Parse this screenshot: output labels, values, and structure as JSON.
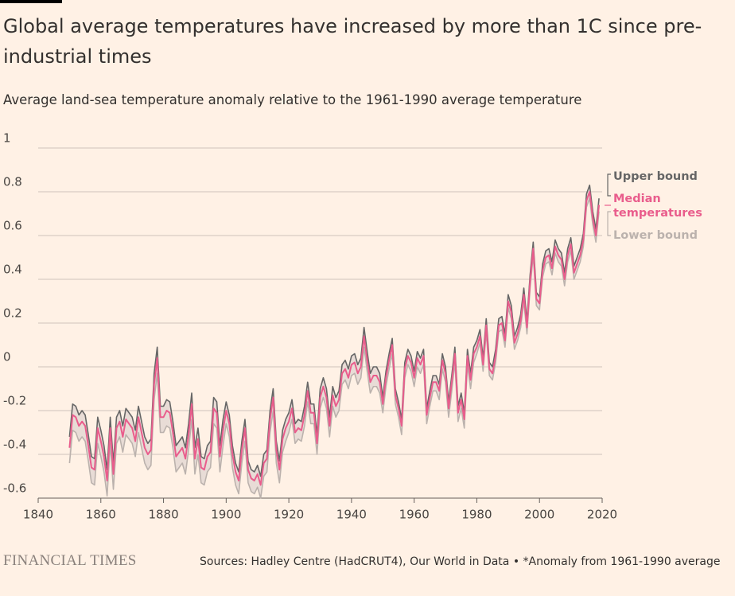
{
  "chart_data": {
    "type": "line",
    "title": "Global average temperatures have increased by more than 1C since pre-industrial times",
    "subtitle": "Average land-sea temperature anomaly relative to the 1961-1990 average temperature",
    "source": "Sources: Hadley Centre (HadCRUT4), Our World in Data • *Anomaly from 1961-1990 average",
    "brand": "FINANCIAL TIMES",
    "band_color": "#e8dcd6",
    "x": [
      1850,
      1851,
      1852,
      1853,
      1854,
      1855,
      1856,
      1857,
      1858,
      1859,
      1860,
      1861,
      1862,
      1863,
      1864,
      1865,
      1866,
      1867,
      1868,
      1869,
      1870,
      1871,
      1872,
      1873,
      1874,
      1875,
      1876,
      1877,
      1878,
      1879,
      1880,
      1881,
      1882,
      1883,
      1884,
      1885,
      1886,
      1887,
      1888,
      1889,
      1890,
      1891,
      1892,
      1893,
      1894,
      1895,
      1896,
      1897,
      1898,
      1899,
      1900,
      1901,
      1902,
      1903,
      1904,
      1905,
      1906,
      1907,
      1908,
      1909,
      1910,
      1911,
      1912,
      1913,
      1914,
      1915,
      1916,
      1917,
      1918,
      1919,
      1920,
      1921,
      1922,
      1923,
      1924,
      1925,
      1926,
      1927,
      1928,
      1929,
      1930,
      1931,
      1932,
      1933,
      1934,
      1935,
      1936,
      1937,
      1938,
      1939,
      1940,
      1941,
      1942,
      1943,
      1944,
      1945,
      1946,
      1947,
      1948,
      1949,
      1950,
      1951,
      1952,
      1953,
      1954,
      1955,
      1956,
      1957,
      1958,
      1959,
      1960,
      1961,
      1962,
      1963,
      1964,
      1965,
      1966,
      1967,
      1968,
      1969,
      1970,
      1971,
      1972,
      1973,
      1974,
      1975,
      1976,
      1977,
      1978,
      1979,
      1980,
      1981,
      1982,
      1983,
      1984,
      1985,
      1986,
      1987,
      1988,
      1989,
      1990,
      1991,
      1992,
      1993,
      1994,
      1995,
      1996,
      1997,
      1998,
      1999,
      2000,
      2001,
      2002,
      2003,
      2004,
      2005,
      2006,
      2007,
      2008,
      2009,
      2010,
      2011,
      2012,
      2013,
      2014,
      2015,
      2016,
      2017,
      2018,
      2019
    ],
    "series": [
      {
        "name": "Upper bound",
        "color": "#666666",
        "values": [
          -0.32,
          -0.17,
          -0.18,
          -0.22,
          -0.2,
          -0.22,
          -0.31,
          -0.41,
          -0.42,
          -0.23,
          -0.29,
          -0.36,
          -0.47,
          -0.23,
          -0.44,
          -0.23,
          -0.2,
          -0.27,
          -0.19,
          -0.21,
          -0.23,
          -0.29,
          -0.18,
          -0.25,
          -0.32,
          -0.35,
          -0.33,
          -0.03,
          0.09,
          -0.18,
          -0.18,
          -0.15,
          -0.16,
          -0.25,
          -0.36,
          -0.34,
          -0.32,
          -0.37,
          -0.26,
          -0.12,
          -0.37,
          -0.28,
          -0.41,
          -0.42,
          -0.36,
          -0.34,
          -0.14,
          -0.16,
          -0.36,
          -0.24,
          -0.16,
          -0.22,
          -0.36,
          -0.44,
          -0.48,
          -0.34,
          -0.24,
          -0.43,
          -0.47,
          -0.48,
          -0.45,
          -0.5,
          -0.4,
          -0.38,
          -0.2,
          -0.1,
          -0.34,
          -0.43,
          -0.29,
          -0.24,
          -0.21,
          -0.15,
          -0.26,
          -0.24,
          -0.25,
          -0.18,
          -0.07,
          -0.17,
          -0.17,
          -0.31,
          -0.1,
          -0.05,
          -0.1,
          -0.23,
          -0.09,
          -0.14,
          -0.11,
          0.01,
          0.03,
          -0.01,
          0.05,
          0.06,
          0.01,
          0.04,
          0.18,
          0.07,
          -0.03,
          0.0,
          0.0,
          -0.03,
          -0.14,
          -0.02,
          0.06,
          0.13,
          -0.1,
          -0.16,
          -0.24,
          0.02,
          0.08,
          0.05,
          -0.02,
          0.07,
          0.04,
          0.08,
          -0.19,
          -0.11,
          -0.04,
          -0.04,
          -0.08,
          0.06,
          0.0,
          -0.16,
          -0.04,
          0.09,
          -0.18,
          -0.12,
          -0.21,
          0.08,
          -0.03,
          0.09,
          0.12,
          0.17,
          0.04,
          0.22,
          0.02,
          0.0,
          0.08,
          0.22,
          0.23,
          0.15,
          0.33,
          0.28,
          0.14,
          0.18,
          0.24,
          0.36,
          0.21,
          0.42,
          0.57,
          0.34,
          0.32,
          0.47,
          0.53,
          0.54,
          0.48,
          0.58,
          0.54,
          0.52,
          0.43,
          0.54,
          0.59,
          0.46,
          0.5,
          0.54,
          0.61,
          0.79,
          0.83,
          0.71,
          0.63,
          0.77
        ]
      },
      {
        "name": "Median temperatures",
        "color": "#e95d8c",
        "values": [
          -0.37,
          -0.22,
          -0.23,
          -0.27,
          -0.25,
          -0.27,
          -0.36,
          -0.46,
          -0.47,
          -0.28,
          -0.34,
          -0.41,
          -0.52,
          -0.28,
          -0.49,
          -0.28,
          -0.25,
          -0.32,
          -0.24,
          -0.26,
          -0.28,
          -0.34,
          -0.23,
          -0.3,
          -0.37,
          -0.4,
          -0.38,
          -0.08,
          0.04,
          -0.23,
          -0.23,
          -0.2,
          -0.21,
          -0.3,
          -0.41,
          -0.39,
          -0.37,
          -0.42,
          -0.31,
          -0.17,
          -0.42,
          -0.33,
          -0.46,
          -0.47,
          -0.41,
          -0.39,
          -0.19,
          -0.21,
          -0.41,
          -0.29,
          -0.2,
          -0.26,
          -0.4,
          -0.48,
          -0.52,
          -0.38,
          -0.28,
          -0.47,
          -0.51,
          -0.52,
          -0.49,
          -0.54,
          -0.44,
          -0.42,
          -0.24,
          -0.14,
          -0.38,
          -0.47,
          -0.33,
          -0.28,
          -0.25,
          -0.19,
          -0.3,
          -0.28,
          -0.29,
          -0.22,
          -0.11,
          -0.21,
          -0.21,
          -0.35,
          -0.14,
          -0.09,
          -0.14,
          -0.27,
          -0.13,
          -0.18,
          -0.15,
          -0.03,
          -0.01,
          -0.05,
          0.01,
          0.02,
          -0.03,
          0.0,
          0.14,
          0.03,
          -0.07,
          -0.04,
          -0.04,
          -0.07,
          -0.17,
          -0.05,
          0.03,
          0.1,
          -0.13,
          -0.19,
          -0.27,
          -0.01,
          0.05,
          0.02,
          -0.05,
          0.04,
          0.01,
          0.05,
          -0.22,
          -0.14,
          -0.07,
          -0.07,
          -0.11,
          0.03,
          -0.03,
          -0.19,
          -0.07,
          0.06,
          -0.21,
          -0.15,
          -0.24,
          0.05,
          -0.06,
          0.06,
          0.09,
          0.14,
          0.01,
          0.19,
          -0.01,
          -0.03,
          0.05,
          0.19,
          0.2,
          0.12,
          0.3,
          0.25,
          0.11,
          0.15,
          0.21,
          0.33,
          0.18,
          0.39,
          0.54,
          0.31,
          0.29,
          0.44,
          0.5,
          0.51,
          0.45,
          0.55,
          0.51,
          0.49,
          0.4,
          0.51,
          0.56,
          0.43,
          0.47,
          0.51,
          0.58,
          0.76,
          0.8,
          0.68,
          0.6,
          0.74
        ]
      },
      {
        "name": "Lower bound",
        "color": "#bbb2ad",
        "values": [
          -0.44,
          -0.29,
          -0.3,
          -0.34,
          -0.32,
          -0.34,
          -0.43,
          -0.53,
          -0.54,
          -0.35,
          -0.41,
          -0.48,
          -0.59,
          -0.35,
          -0.56,
          -0.35,
          -0.32,
          -0.39,
          -0.31,
          -0.33,
          -0.35,
          -0.41,
          -0.3,
          -0.37,
          -0.44,
          -0.47,
          -0.45,
          -0.15,
          -0.03,
          -0.3,
          -0.3,
          -0.27,
          -0.28,
          -0.37,
          -0.48,
          -0.46,
          -0.44,
          -0.49,
          -0.38,
          -0.24,
          -0.49,
          -0.4,
          -0.53,
          -0.54,
          -0.48,
          -0.46,
          -0.26,
          -0.28,
          -0.48,
          -0.36,
          -0.26,
          -0.32,
          -0.46,
          -0.54,
          -0.58,
          -0.44,
          -0.34,
          -0.53,
          -0.57,
          -0.58,
          -0.55,
          -0.6,
          -0.5,
          -0.48,
          -0.3,
          -0.2,
          -0.44,
          -0.53,
          -0.39,
          -0.34,
          -0.3,
          -0.24,
          -0.35,
          -0.33,
          -0.34,
          -0.27,
          -0.16,
          -0.26,
          -0.26,
          -0.4,
          -0.19,
          -0.14,
          -0.19,
          -0.32,
          -0.18,
          -0.23,
          -0.2,
          -0.08,
          -0.06,
          -0.1,
          -0.04,
          -0.03,
          -0.08,
          -0.05,
          0.09,
          -0.02,
          -0.12,
          -0.09,
          -0.09,
          -0.12,
          -0.21,
          -0.09,
          -0.01,
          0.06,
          -0.17,
          -0.23,
          -0.31,
          -0.05,
          0.01,
          -0.02,
          -0.09,
          0.0,
          -0.03,
          0.01,
          -0.26,
          -0.18,
          -0.11,
          -0.11,
          -0.15,
          -0.01,
          -0.07,
          -0.23,
          -0.11,
          0.02,
          -0.25,
          -0.19,
          -0.28,
          0.01,
          -0.1,
          0.02,
          0.06,
          0.11,
          -0.02,
          0.16,
          -0.04,
          -0.06,
          0.02,
          0.16,
          0.17,
          0.09,
          0.27,
          0.22,
          0.08,
          0.12,
          0.18,
          0.3,
          0.15,
          0.36,
          0.51,
          0.28,
          0.26,
          0.41,
          0.47,
          0.48,
          0.42,
          0.52,
          0.48,
          0.46,
          0.37,
          0.48,
          0.53,
          0.4,
          0.44,
          0.48,
          0.55,
          0.73,
          0.77,
          0.65,
          0.57,
          0.71
        ]
      }
    ],
    "xlim": [
      1840,
      2020
    ],
    "xticks": [
      1840,
      1860,
      1880,
      1900,
      1920,
      1940,
      1960,
      1980,
      2000,
      2020
    ],
    "ylim": [
      -0.6,
      1
    ],
    "yticks": [
      -0.6,
      -0.4,
      -0.2,
      0,
      0.2,
      0.4,
      0.6,
      0.8,
      1
    ],
    "grid": true
  }
}
